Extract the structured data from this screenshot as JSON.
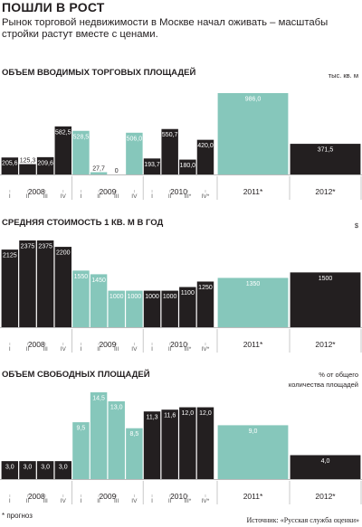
{
  "title": "ПОШЛИ В РОСТ",
  "subtitle": "Рынок торговой недвижимости в Москве начал оживать – масштабы стройки растут вместе с ценами.",
  "footnote": "* прогноз",
  "source": "Источник: «Русская служба оценки»",
  "colors": {
    "dark": "#231f20",
    "teal": "#86c7bb",
    "axis": "#bbbbbb"
  },
  "chart_data": [
    {
      "type": "bar",
      "title": "ОБЪЕМ ВВОДИМЫХ ТОРГОВЫХ ПЛОЩАДЕЙ",
      "unit": "тыс. кв. м",
      "ylim": [
        0,
        986
      ],
      "quarter_labels": [
        "I",
        "II",
        "III",
        "IV",
        "I",
        "II",
        "III",
        "IV",
        "I",
        "II",
        "III*",
        "IV*"
      ],
      "group_labels": [
        "2008",
        "2009",
        "2010",
        "2011*",
        "2012*"
      ],
      "bars": [
        {
          "value": 205.6,
          "label": "205,6",
          "color": "dark"
        },
        {
          "value": 125.3,
          "label": "125,3",
          "color": "dark"
        },
        {
          "value": 209.6,
          "label": "209,6",
          "color": "dark"
        },
        {
          "value": 582.5,
          "label": "582,5",
          "color": "dark"
        },
        {
          "value": 528.5,
          "label": "528,5",
          "color": "teal"
        },
        {
          "value": 27.7,
          "label": "27,7",
          "color": "teal"
        },
        {
          "value": 0,
          "label": "0",
          "color": "teal"
        },
        {
          "value": 506.0,
          "label": "506,0",
          "color": "teal"
        },
        {
          "value": 193.7,
          "label": "193,7",
          "color": "dark"
        },
        {
          "value": 550.7,
          "label": "550,7",
          "color": "dark"
        },
        {
          "value": 180.0,
          "label": "180,0",
          "color": "dark"
        },
        {
          "value": 420.0,
          "label": "420,0",
          "color": "dark"
        },
        {
          "value": 986.0,
          "label": "986,0",
          "color": "teal"
        },
        {
          "value": 371.5,
          "label": "371,5",
          "color": "dark"
        }
      ]
    },
    {
      "type": "bar",
      "title": "СРЕДНЯЯ СТОИМОСТЬ 1 КВ. М В ГОД",
      "unit": "$",
      "ylim": [
        0,
        2375
      ],
      "quarter_labels": [
        "I",
        "II",
        "III",
        "IV",
        "I",
        "II",
        "III",
        "IV",
        "I",
        "II",
        "III*",
        "IV*"
      ],
      "group_labels": [
        "2008",
        "2009",
        "2010",
        "2011*",
        "2012*"
      ],
      "bars": [
        {
          "value": 2125,
          "label": "2125",
          "color": "dark"
        },
        {
          "value": 2375,
          "label": "2375",
          "color": "dark"
        },
        {
          "value": 2375,
          "label": "2375",
          "color": "dark"
        },
        {
          "value": 2200,
          "label": "2200",
          "color": "dark"
        },
        {
          "value": 1550,
          "label": "1550",
          "color": "teal"
        },
        {
          "value": 1450,
          "label": "1450",
          "color": "teal"
        },
        {
          "value": 1000,
          "label": "1000",
          "color": "teal"
        },
        {
          "value": 1000,
          "label": "1000",
          "color": "teal"
        },
        {
          "value": 1000,
          "label": "1000",
          "color": "dark"
        },
        {
          "value": 1000,
          "label": "1000",
          "color": "dark"
        },
        {
          "value": 1100,
          "label": "1100",
          "color": "dark"
        },
        {
          "value": 1250,
          "label": "1250",
          "color": "dark"
        },
        {
          "value": 1350,
          "label": "1350",
          "color": "teal"
        },
        {
          "value": 1500,
          "label": "1500",
          "color": "dark"
        }
      ]
    },
    {
      "type": "bar",
      "title": "ОБЪЕМ СВОБОДНЫХ ПЛОЩАДЕЙ",
      "unit": "% от общего количества площадей",
      "unit_lines": [
        "% от общего",
        "количества площадей"
      ],
      "ylim": [
        0,
        14.5
      ],
      "quarter_labels": [
        "I",
        "II",
        "III",
        "IV",
        "I",
        "II",
        "III",
        "IV",
        "I",
        "II",
        "III*",
        "IV*"
      ],
      "group_labels": [
        "2008",
        "2009",
        "2010",
        "2011*",
        "2012*"
      ],
      "bars": [
        {
          "value": 3.0,
          "label": "3,0",
          "color": "dark"
        },
        {
          "value": 3.0,
          "label": "3,0",
          "color": "dark"
        },
        {
          "value": 3.0,
          "label": "3,0",
          "color": "dark"
        },
        {
          "value": 3.0,
          "label": "3,0",
          "color": "dark"
        },
        {
          "value": 9.5,
          "label": "9,5",
          "color": "teal"
        },
        {
          "value": 14.5,
          "label": "14,5",
          "color": "teal"
        },
        {
          "value": 13.0,
          "label": "13,0",
          "color": "teal"
        },
        {
          "value": 8.5,
          "label": "8,5",
          "color": "teal"
        },
        {
          "value": 11.3,
          "label": "11,3",
          "color": "dark"
        },
        {
          "value": 11.6,
          "label": "11,6",
          "color": "dark"
        },
        {
          "value": 12.0,
          "label": "12,0",
          "color": "dark"
        },
        {
          "value": 12.0,
          "label": "12,0",
          "color": "dark"
        },
        {
          "value": 9.0,
          "label": "9,0",
          "color": "teal"
        },
        {
          "value": 4.0,
          "label": "4,0",
          "color": "dark"
        }
      ]
    }
  ]
}
